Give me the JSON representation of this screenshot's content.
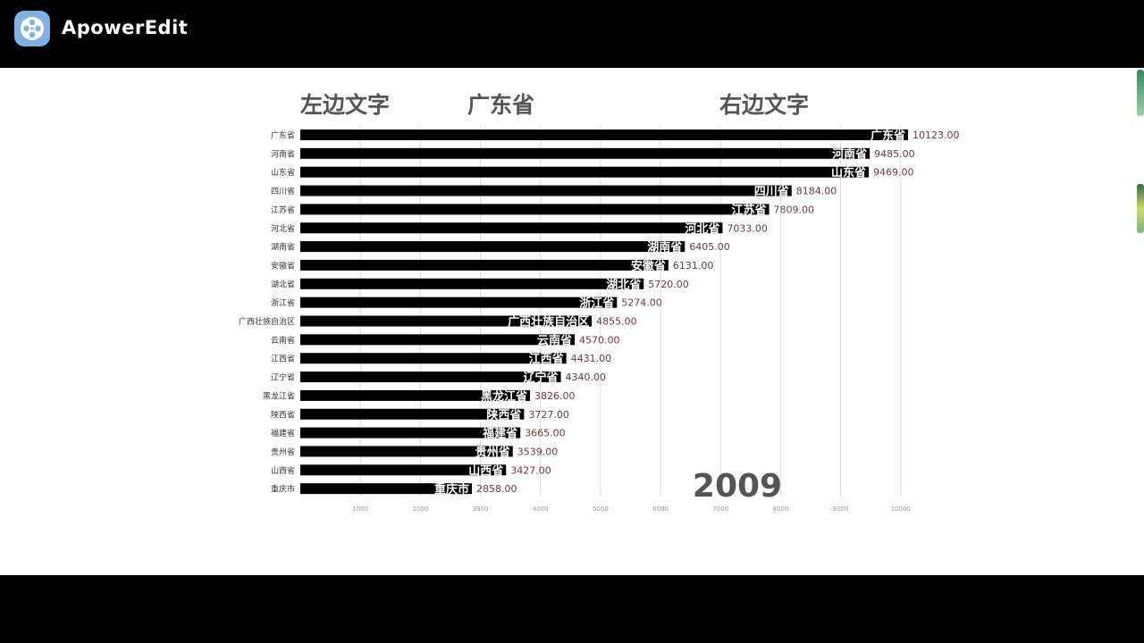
{
  "app": {
    "title": "ApowerEdit",
    "logo_icon": "film-reel-icon",
    "accent": "#6fa8dc"
  },
  "headers": {
    "left": "左边文字",
    "center": "广东省",
    "right": "右边文字"
  },
  "year": "2009",
  "chart_data": {
    "type": "bar",
    "orientation": "horizontal",
    "categories": [
      "广东省",
      "河南省",
      "山东省",
      "四川省",
      "江苏省",
      "河北省",
      "湖南省",
      "安徽省",
      "湖北省",
      "浙江省",
      "广西壮族自治区",
      "云南省",
      "江西省",
      "辽宁省",
      "黑龙江省",
      "陕西省",
      "福建省",
      "贵州省",
      "山西省",
      "重庆市"
    ],
    "values": [
      10123,
      9485,
      9469,
      8184,
      7809,
      7033,
      6405,
      6131,
      5720,
      5274,
      4855,
      4570,
      4431,
      4340,
      3826,
      3727,
      3665,
      3539,
      3427,
      2858
    ],
    "value_labels": [
      "10123.00",
      "9485.00",
      "9469.00",
      "8184.00",
      "7809.00",
      "7033.00",
      "6405.00",
      "6131.00",
      "5720.00",
      "5274.00",
      "4855.00",
      "4570.00",
      "4431.00",
      "4340.00",
      "3826.00",
      "3727.00",
      "3665.00",
      "3539.00",
      "3427.00",
      "2858.00"
    ],
    "xticks": [
      1000,
      2000,
      3000,
      4000,
      5000,
      6000,
      7000,
      8000,
      9000,
      10000
    ],
    "xtick_labels": [
      "1000",
      "2000",
      "3000",
      "4000",
      "5000",
      "6000",
      "7000",
      "8000",
      "9000",
      "10000"
    ],
    "xlim": [
      0,
      10123
    ],
    "grid": true,
    "bar_color": "#000000",
    "inner_label_color": "#ffffff",
    "value_label_color": "#6b3a3a",
    "grid_color": "#dddddd"
  }
}
